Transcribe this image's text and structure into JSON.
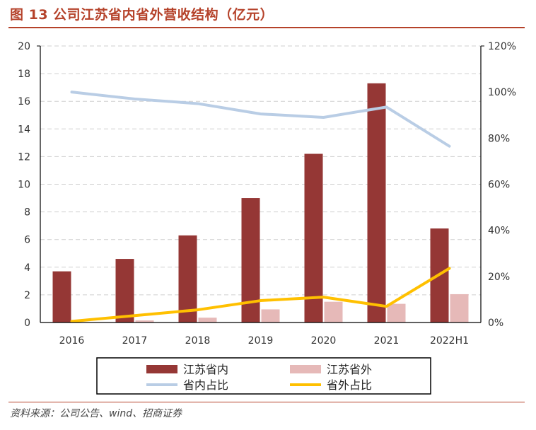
{
  "header": {
    "title": "图 13 公司江苏省内省外营收结构（亿元）"
  },
  "footer": {
    "source": "资料来源：公司公告、wind、招商证券"
  },
  "chart_data": {
    "type": "bar",
    "title": "图 13 公司江苏省内省外营收结构（亿元）",
    "categories": [
      "2016",
      "2017",
      "2018",
      "2019",
      "2020",
      "2021",
      "2022H1"
    ],
    "series": [
      {
        "name": "江苏省内",
        "type": "bar",
        "axis": "left",
        "color": "#953735",
        "values": [
          3.7,
          4.6,
          6.3,
          9.0,
          12.2,
          17.3,
          6.8
        ]
      },
      {
        "name": "江苏省外",
        "type": "bar",
        "axis": "left",
        "color": "#e6b9b8",
        "values": [
          0.0,
          0.15,
          0.35,
          0.95,
          1.5,
          1.35,
          2.05
        ]
      },
      {
        "name": "省内占比",
        "type": "line",
        "axis": "right",
        "color": "#b9cde5",
        "values": [
          100,
          97,
          95,
          90.5,
          89,
          93.5,
          76.5
        ]
      },
      {
        "name": "省外占比",
        "type": "line",
        "axis": "right",
        "color": "#ffc000",
        "values": [
          0.5,
          3,
          5.5,
          9.5,
          11,
          7,
          23.5
        ]
      }
    ],
    "left_axis": {
      "min": 0,
      "max": 20,
      "step": 2,
      "ticks": [
        "0",
        "2",
        "4",
        "6",
        "8",
        "10",
        "12",
        "14",
        "16",
        "18",
        "20"
      ]
    },
    "right_axis": {
      "min": 0,
      "max": 120,
      "step": 20,
      "ticks": [
        "0%",
        "20%",
        "40%",
        "60%",
        "80%",
        "100%",
        "120%"
      ]
    },
    "grid": true,
    "legend_position": "bottom"
  }
}
